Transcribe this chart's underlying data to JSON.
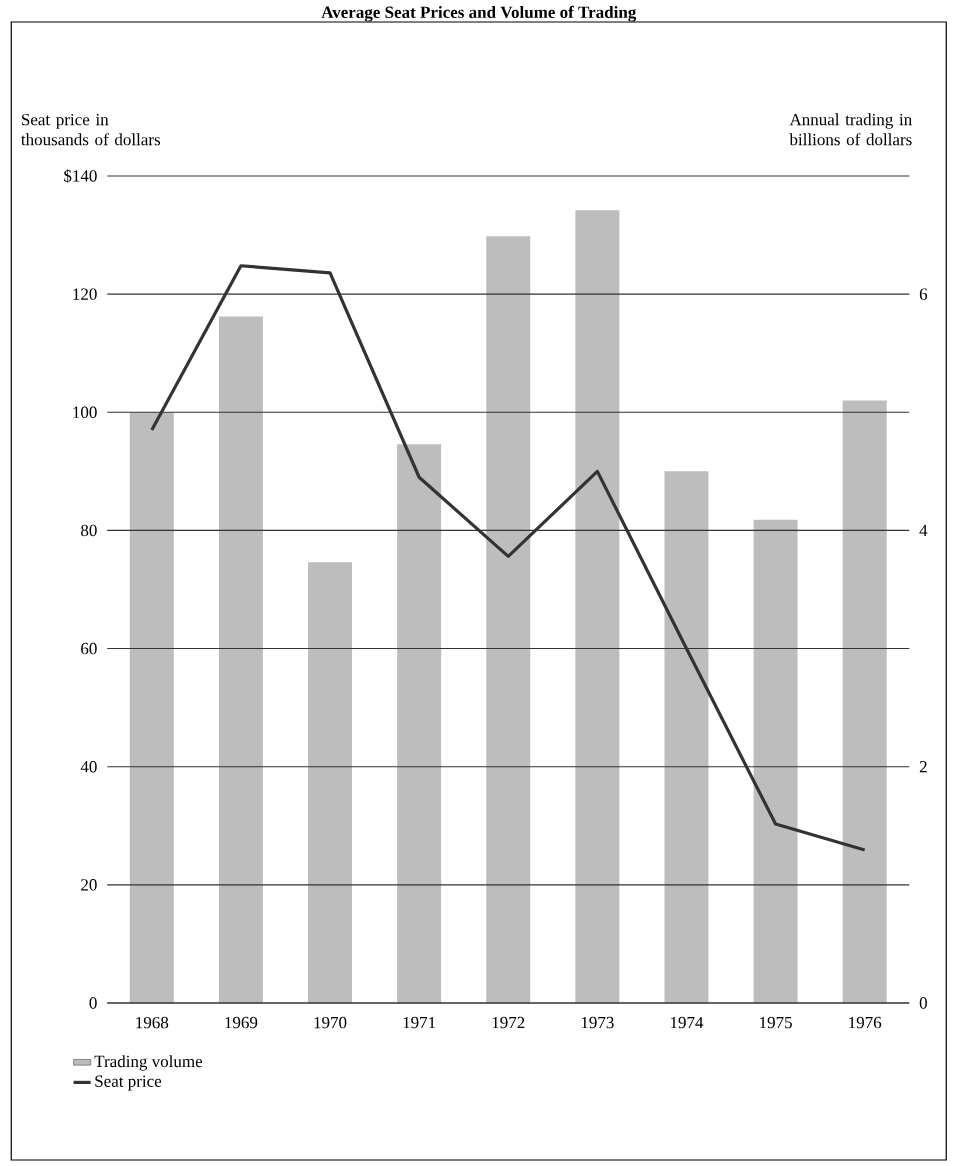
{
  "chart_data": {
    "type": "bar",
    "title": "Average Seat Prices and Volume of Trading",
    "ylabel": "Seat price in thousands of dollars",
    "y2label": "Annual trading in billions of dollars",
    "categories": [
      "1968",
      "1969",
      "1970",
      "1971",
      "1972",
      "1973",
      "1974",
      "1975",
      "1976"
    ],
    "series": [
      {
        "name": "Trading volume",
        "axis": "y2",
        "color": "#bdbdbd",
        "values": [
          5.0,
          5.81,
          3.73,
          4.73,
          6.49,
          6.71,
          4.5,
          4.09,
          5.1
        ]
      },
      {
        "name": "Seat price",
        "type": "line",
        "axis": "y",
        "color": "#333333",
        "values": [
          97,
          124.8,
          123.6,
          89,
          75.6,
          90,
          60,
          30.3,
          25.9
        ]
      }
    ],
    "ylim": [
      0,
      140
    ],
    "yticks": [
      {
        "value": 0,
        "label": "0"
      },
      {
        "value": 20,
        "label": "20"
      },
      {
        "value": 40,
        "label": "40"
      },
      {
        "value": 60,
        "label": "60"
      },
      {
        "value": 80,
        "label": "80"
      },
      {
        "value": 100,
        "label": "100"
      },
      {
        "value": 120,
        "label": "120"
      },
      {
        "value": 140,
        "label": "$140"
      }
    ],
    "y2lim": [
      0,
      7
    ],
    "y2ticks": [
      0,
      2,
      4,
      6
    ],
    "grid": "y",
    "legend": "bottom left",
    "marker": "none",
    "line_style": "solid"
  }
}
